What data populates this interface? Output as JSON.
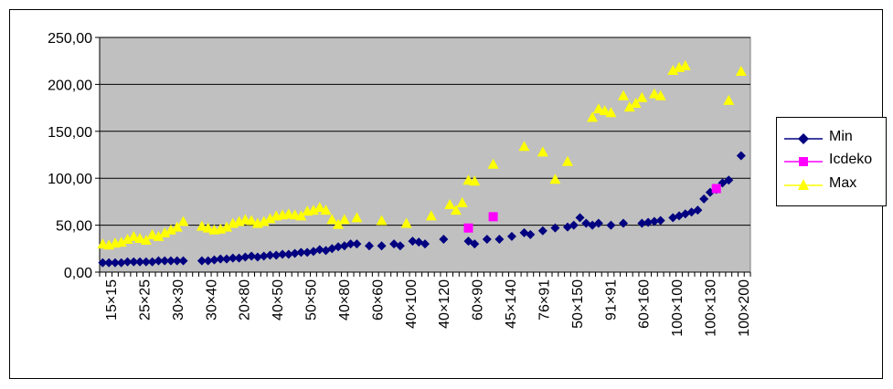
{
  "chart_data": {
    "type": "scatter",
    "ylim": [
      0,
      250
    ],
    "y_ticks": [
      "0,00",
      "50,00",
      "100,00",
      "150,00",
      "200,00",
      "250,00"
    ],
    "grid": "horizontal",
    "legend_position": "right",
    "x_tick_labels": [
      "15×15",
      "25×25",
      "30×30",
      "30×40",
      "20×80",
      "40×50",
      "50×50",
      "40×80",
      "60×60",
      "40×100",
      "40×120",
      "60×90",
      "45×140",
      "76×91",
      "50×150",
      "91×91",
      "60×160",
      "100×100",
      "100×130",
      "100×200"
    ],
    "colors": {
      "plot_bg": "#c0c0c0",
      "Min": "#000080",
      "Icdeko": "#ff00ff",
      "Max": "#ffff00"
    },
    "series": [
      {
        "name": "Min",
        "marker": "diamond",
        "line": "none",
        "points": [
          [
            1,
            10
          ],
          [
            2,
            10
          ],
          [
            3,
            10
          ],
          [
            4,
            10
          ],
          [
            5,
            11
          ],
          [
            6,
            11
          ],
          [
            7,
            11
          ],
          [
            8,
            11
          ],
          [
            9,
            11
          ],
          [
            10,
            12
          ],
          [
            11,
            12
          ],
          [
            12,
            12
          ],
          [
            13,
            12
          ],
          [
            14,
            12
          ],
          [
            17,
            12
          ],
          [
            18,
            12
          ],
          [
            19,
            13
          ],
          [
            20,
            14
          ],
          [
            21,
            14
          ],
          [
            22,
            15
          ],
          [
            23,
            15
          ],
          [
            24,
            16
          ],
          [
            25,
            17
          ],
          [
            26,
            16
          ],
          [
            27,
            17
          ],
          [
            28,
            18
          ],
          [
            29,
            18
          ],
          [
            30,
            19
          ],
          [
            31,
            19
          ],
          [
            32,
            20
          ],
          [
            33,
            21
          ],
          [
            34,
            21
          ],
          [
            35,
            22
          ],
          [
            36,
            24
          ],
          [
            37,
            23
          ],
          [
            38,
            25
          ],
          [
            39,
            27
          ],
          [
            40,
            28
          ],
          [
            41,
            30
          ],
          [
            42,
            30
          ],
          [
            44,
            28
          ],
          [
            46,
            28
          ],
          [
            48,
            30
          ],
          [
            49,
            28
          ],
          [
            51,
            33
          ],
          [
            52,
            32
          ],
          [
            53,
            30
          ],
          [
            56,
            35
          ],
          [
            60,
            33
          ],
          [
            61,
            30
          ],
          [
            63,
            35
          ],
          [
            65,
            35
          ],
          [
            67,
            38
          ],
          [
            69,
            42
          ],
          [
            70,
            40
          ],
          [
            72,
            44
          ],
          [
            74,
            47
          ],
          [
            76,
            48
          ],
          [
            77,
            50
          ],
          [
            78,
            58
          ],
          [
            79,
            52
          ],
          [
            80,
            50
          ],
          [
            81,
            52
          ],
          [
            83,
            50
          ],
          [
            85,
            52
          ],
          [
            88,
            52
          ],
          [
            89,
            53
          ],
          [
            90,
            54
          ],
          [
            91,
            55
          ],
          [
            93,
            58
          ],
          [
            94,
            60
          ],
          [
            95,
            62
          ],
          [
            96,
            64
          ],
          [
            97,
            66
          ],
          [
            98,
            78
          ],
          [
            99,
            85
          ],
          [
            100,
            88
          ],
          [
            101,
            95
          ],
          [
            102,
            98
          ],
          [
            104,
            124
          ]
        ]
      },
      {
        "name": "Icdeko",
        "marker": "square",
        "line": "none",
        "points": [
          [
            60,
            47
          ],
          [
            64,
            59
          ],
          [
            100,
            89
          ]
        ]
      },
      {
        "name": "Max",
        "marker": "triangle",
        "line": "none",
        "points": [
          [
            1,
            30
          ],
          [
            2,
            29
          ],
          [
            3,
            31
          ],
          [
            4,
            32
          ],
          [
            5,
            35
          ],
          [
            6,
            38
          ],
          [
            7,
            36
          ],
          [
            8,
            34
          ],
          [
            9,
            40
          ],
          [
            10,
            38
          ],
          [
            11,
            42
          ],
          [
            12,
            45
          ],
          [
            13,
            48
          ],
          [
            14,
            54
          ],
          [
            17,
            49
          ],
          [
            18,
            47
          ],
          [
            19,
            45
          ],
          [
            20,
            46
          ],
          [
            21,
            48
          ],
          [
            22,
            52
          ],
          [
            23,
            54
          ],
          [
            24,
            56
          ],
          [
            25,
            55
          ],
          [
            26,
            52
          ],
          [
            27,
            54
          ],
          [
            28,
            57
          ],
          [
            29,
            60
          ],
          [
            30,
            61
          ],
          [
            31,
            62
          ],
          [
            32,
            61
          ],
          [
            33,
            60
          ],
          [
            34,
            65
          ],
          [
            35,
            66
          ],
          [
            36,
            69
          ],
          [
            37,
            66
          ],
          [
            38,
            56
          ],
          [
            39,
            51
          ],
          [
            40,
            56
          ],
          [
            42,
            58
          ],
          [
            46,
            55
          ],
          [
            50,
            52
          ],
          [
            54,
            60
          ],
          [
            57,
            72
          ],
          [
            58,
            66
          ],
          [
            59,
            74
          ],
          [
            60,
            98
          ],
          [
            61,
            97
          ],
          [
            64,
            115
          ],
          [
            69,
            134
          ],
          [
            72,
            128
          ],
          [
            74,
            99
          ],
          [
            76,
            118
          ],
          [
            80,
            165
          ],
          [
            81,
            174
          ],
          [
            82,
            172
          ],
          [
            83,
            170
          ],
          [
            85,
            188
          ],
          [
            86,
            176
          ],
          [
            87,
            180
          ],
          [
            88,
            186
          ],
          [
            90,
            190
          ],
          [
            91,
            188
          ],
          [
            93,
            215
          ],
          [
            94,
            218
          ],
          [
            95,
            220
          ],
          [
            102,
            183
          ],
          [
            104,
            214
          ]
        ]
      }
    ]
  }
}
